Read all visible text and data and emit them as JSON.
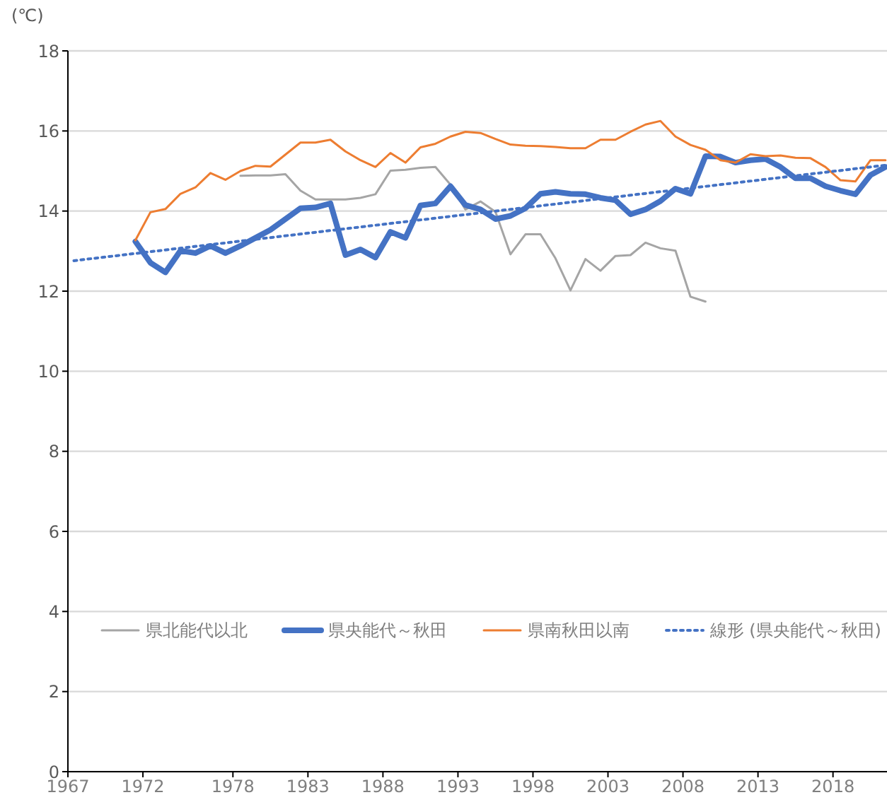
{
  "chart_data": {
    "type": "line",
    "ylabel": "(℃)",
    "x": [
      1971.5,
      1972.5,
      1973.5,
      1974.5,
      1975.5,
      1976.5,
      1977.5,
      1978.5,
      1979.5,
      1980.5,
      1981.5,
      1982.5,
      1983.5,
      1984.5,
      1985.5,
      1986.5,
      1987.5,
      1988.5,
      1989.5,
      1990.5,
      1991.5,
      1992.5,
      1993.5,
      1994.5,
      1995.5,
      1996.5,
      1997.5,
      1998.5,
      1999.5,
      2000.5,
      2001.5,
      2002.5,
      2003.5,
      2004.5,
      2005.5,
      2006.5,
      2007.5,
      2008.5,
      2009.5,
      2010.5,
      2011.5,
      2012.5,
      2013.5,
      2014.5,
      2015.5,
      2016.5,
      2017.5,
      2018.5,
      2019.5,
      2020.5,
      2021.5
    ],
    "series": [
      {
        "name": "県北能代以北",
        "color": "#a5a5a5",
        "x": [
          1978.5,
          1979.5,
          1980.5,
          1981.5,
          1982.5,
          1983.5,
          1984.5,
          1985.5,
          1986.5,
          1987.5,
          1988.5,
          1989.5,
          1990.5,
          1991.5,
          1992.5,
          1993.5,
          1994.5,
          1995.5,
          1996.5,
          1997.5,
          1998.5,
          1999.5,
          2000.5,
          2001.5,
          2002.5,
          2003.5,
          2004.5,
          2005.5,
          2006.5,
          2007.5,
          2008.5,
          2009.5
        ],
        "values": [
          14.88,
          14.89,
          14.89,
          14.92,
          14.51,
          14.29,
          14.29,
          14.29,
          14.33,
          14.42,
          15.01,
          15.03,
          15.08,
          15.1,
          14.66,
          14.04,
          14.24,
          13.98,
          12.92,
          13.42,
          13.42,
          12.82,
          12.02,
          12.8,
          12.51,
          12.88,
          12.9,
          13.21,
          13.07,
          13.01,
          11.86,
          11.74
        ]
      },
      {
        "name": "県央能代～秋田",
        "color": "#4472c4",
        "values": [
          13.24,
          12.71,
          12.47,
          13.01,
          12.95,
          13.13,
          12.95,
          13.13,
          13.33,
          13.53,
          13.8,
          14.07,
          14.09,
          14.19,
          12.9,
          13.04,
          12.84,
          13.48,
          13.33,
          14.14,
          14.19,
          14.62,
          14.15,
          14.04,
          13.8,
          13.88,
          14.07,
          14.43,
          14.48,
          14.43,
          14.42,
          14.33,
          14.27,
          13.92,
          14.04,
          14.25,
          14.56,
          14.43,
          15.37,
          15.36,
          15.21,
          15.27,
          15.3,
          15.1,
          14.82,
          14.82,
          14.62,
          14.51,
          14.42,
          14.9,
          15.1
        ]
      },
      {
        "name": "県南秋田以南",
        "color": "#ed7d31",
        "values": [
          13.27,
          13.97,
          14.05,
          14.43,
          14.59,
          14.95,
          14.78,
          15.0,
          15.13,
          15.11,
          15.41,
          15.71,
          15.71,
          15.78,
          15.49,
          15.27,
          15.1,
          15.45,
          15.21,
          15.59,
          15.68,
          15.86,
          15.98,
          15.95,
          15.8,
          15.66,
          15.63,
          15.62,
          15.6,
          15.57,
          15.57,
          15.78,
          15.78,
          15.98,
          16.16,
          16.25,
          15.86,
          15.65,
          15.53,
          15.27,
          15.21,
          15.42,
          15.37,
          15.39,
          15.33,
          15.32,
          15.1,
          14.77,
          14.74,
          15.27,
          15.27
        ]
      },
      {
        "name": "線形 (県央能代～秋田)",
        "color": "#4472c4",
        "line_style": "dotted",
        "x": [
          1967.4,
          2021.6
        ],
        "values": [
          12.76,
          15.15
        ]
      }
    ],
    "xlim": [
      1967,
      2021.6
    ],
    "xticks": [
      1967,
      1972,
      1978,
      1983,
      1988,
      1993,
      1998,
      2003,
      2008,
      2013,
      2018
    ],
    "ylim": [
      0,
      18
    ],
    "yticks": [
      0,
      2,
      4,
      6,
      8,
      10,
      12,
      14,
      16,
      18
    ],
    "grid": "y",
    "legend": "bottom",
    "marker": "none"
  }
}
